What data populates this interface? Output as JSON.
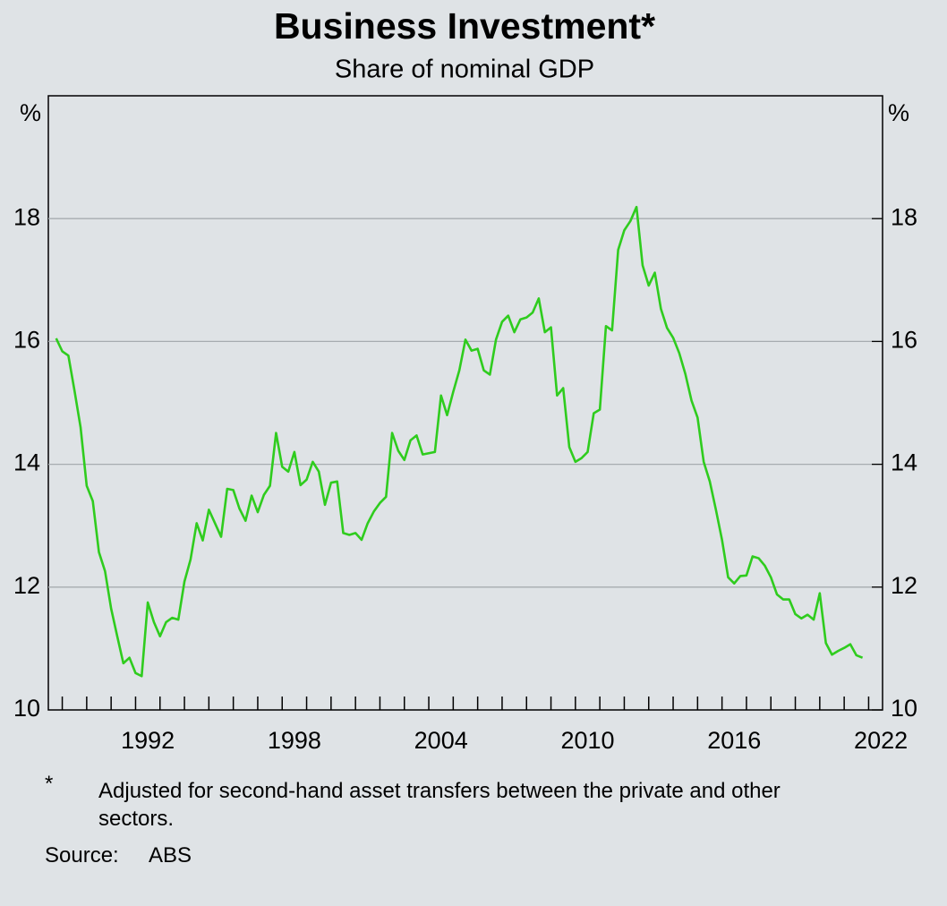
{
  "chart_data": {
    "type": "line",
    "title": "Business Investment*",
    "subtitle": "Share of nominal GDP",
    "ylabel": "%",
    "y2label": "%",
    "color": "#2fcc1e",
    "grid": true,
    "xlim": [
      1988.43,
      2022.57
    ],
    "xticks": [
      {
        "value": 1992.5,
        "label": "1992"
      },
      {
        "value": 1998.5,
        "label": "1998"
      },
      {
        "value": 2004.5,
        "label": "2004"
      },
      {
        "value": 2010.5,
        "label": "2010"
      },
      {
        "value": 2016.5,
        "label": "2016"
      },
      {
        "value": 2022.5,
        "label": "2022"
      }
    ],
    "xminorticks": [
      1989,
      1990,
      1991,
      1992,
      1993,
      1994,
      1995,
      1996,
      1997,
      1998,
      1999,
      2000,
      2001,
      2002,
      2003,
      2004,
      2005,
      2006,
      2007,
      2008,
      2009,
      2010,
      2011,
      2012,
      2013,
      2014,
      2015,
      2016,
      2017,
      2018,
      2019,
      2020,
      2021,
      2022
    ],
    "ylim": [
      10,
      20
    ],
    "yticks": [
      10,
      12,
      14,
      16,
      18
    ],
    "y2lim": [
      10,
      20
    ],
    "y2ticks": [
      10,
      12,
      14,
      16,
      18
    ],
    "x": [
      1988.75,
      1989,
      1989.25,
      1989.5,
      1989.75,
      1990,
      1990.25,
      1990.5,
      1990.75,
      1991,
      1991.25,
      1991.5,
      1991.75,
      1992,
      1992.25,
      1992.5,
      1992.75,
      1993,
      1993.25,
      1993.5,
      1993.75,
      1994,
      1994.25,
      1994.5,
      1994.75,
      1995,
      1995.25,
      1995.5,
      1995.75,
      1996,
      1996.25,
      1996.5,
      1996.75,
      1997,
      1997.25,
      1997.5,
      1997.75,
      1998,
      1998.25,
      1998.5,
      1998.75,
      1999,
      1999.25,
      1999.5,
      1999.75,
      2000,
      2000.25,
      2000.5,
      2000.75,
      2001,
      2001.25,
      2001.5,
      2001.75,
      2002,
      2002.25,
      2002.5,
      2002.75,
      2003,
      2003.25,
      2003.5,
      2003.75,
      2004,
      2004.25,
      2004.5,
      2004.75,
      2005,
      2005.25,
      2005.5,
      2005.75,
      2006,
      2006.25,
      2006.5,
      2006.75,
      2007,
      2007.25,
      2007.5,
      2007.75,
      2008,
      2008.25,
      2008.5,
      2008.75,
      2009,
      2009.25,
      2009.5,
      2009.75,
      2010,
      2010.25,
      2010.5,
      2010.75,
      2011,
      2011.25,
      2011.5,
      2011.75,
      2012,
      2012.25,
      2012.5,
      2012.75,
      2013,
      2013.25,
      2013.5,
      2013.75,
      2014,
      2014.25,
      2014.5,
      2014.75,
      2015,
      2015.25,
      2015.5,
      2015.75,
      2016,
      2016.25,
      2016.5,
      2016.75,
      2017,
      2017.25,
      2017.5,
      2017.75,
      2018,
      2018.25,
      2018.5,
      2018.75,
      2019,
      2019.25,
      2019.5,
      2019.75,
      2020,
      2020.25,
      2020.5,
      2020.75,
      2021,
      2021.25,
      2021.5,
      2021.75
    ],
    "values": [
      16.05,
      15.84,
      15.77,
      15.2,
      14.6,
      13.65,
      13.4,
      12.57,
      12.26,
      11.65,
      11.2,
      10.76,
      10.85,
      10.6,
      10.55,
      11.75,
      11.43,
      11.2,
      11.43,
      11.5,
      11.47,
      12.09,
      12.45,
      13.04,
      12.76,
      13.26,
      13.04,
      12.82,
      13.6,
      13.58,
      13.28,
      13.08,
      13.49,
      13.22,
      13.5,
      13.65,
      14.51,
      13.96,
      13.88,
      14.2,
      13.66,
      13.75,
      14.04,
      13.88,
      13.34,
      13.7,
      13.72,
      12.88,
      12.85,
      12.88,
      12.77,
      13.04,
      13.23,
      13.37,
      13.47,
      14.51,
      14.22,
      14.07,
      14.39,
      14.47,
      14.16,
      14.18,
      14.2,
      15.12,
      14.8,
      15.18,
      15.53,
      16.03,
      15.85,
      15.88,
      15.53,
      15.46,
      16.03,
      16.32,
      16.42,
      16.15,
      16.36,
      16.39,
      16.47,
      16.7,
      16.15,
      16.23,
      15.12,
      15.24,
      14.28,
      14.04,
      14.1,
      14.2,
      14.83,
      14.89,
      16.25,
      16.18,
      17.49,
      17.81,
      17.96,
      18.19,
      17.24,
      16.91,
      17.12,
      16.53,
      16.22,
      16.06,
      15.81,
      15.47,
      15.04,
      14.76,
      14.04,
      13.72,
      13.26,
      12.77,
      12.16,
      12.06,
      12.18,
      12.19,
      12.5,
      12.47,
      12.35,
      12.16,
      11.88,
      11.8,
      11.8,
      11.56,
      11.49,
      11.55,
      11.47,
      11.9,
      11.09,
      10.9,
      10.96,
      11.01,
      11.07,
      10.89,
      10.85
    ],
    "footnote": {
      "marker": "*",
      "text": "Adjusted for second-hand asset transfers between the private and other sectors."
    },
    "source": {
      "label": "Source:",
      "text": "ABS"
    }
  }
}
